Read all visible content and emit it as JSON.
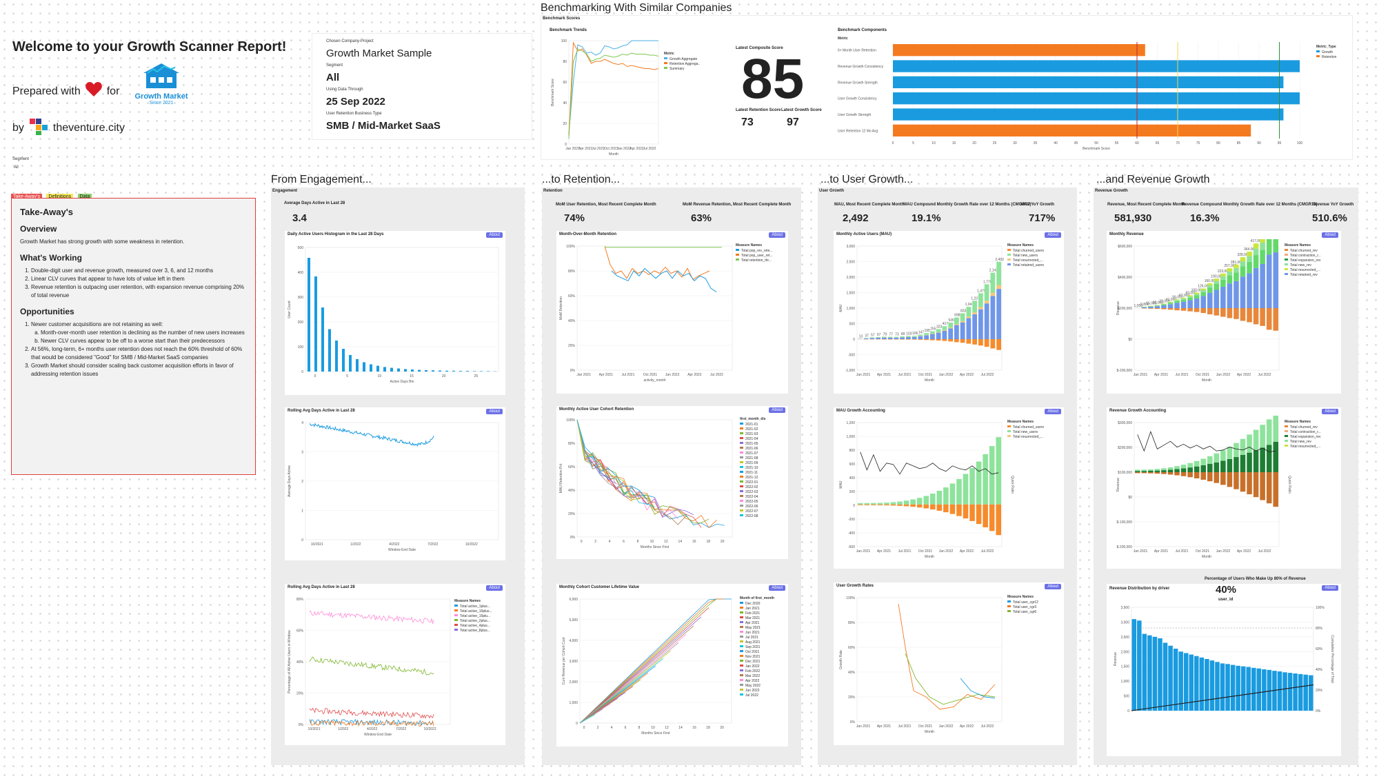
{
  "header": {
    "welcome": "Welcome to your Growth Scanner Report!",
    "prepared_with": "Prepared with",
    "for": "for",
    "by": "by",
    "brand": "theventure.city",
    "client_logo_name": "Growth Market",
    "client_logo_since": "Since 2021"
  },
  "info": {
    "company_label": "Chosen Company-Project",
    "company": "Growth Market Sample",
    "segment_label": "Segment",
    "segment": "All",
    "date_label": "Using Data Through",
    "date": "25 Sep 2022",
    "type_label": "User Retention Business Type",
    "type": "SMB / Mid-Market SaaS"
  },
  "left_segment": {
    "label": "Segment",
    "value": "All"
  },
  "tabs": [
    "Take-Away's",
    "Definitions",
    "Data"
  ],
  "takeaways": {
    "title": "Take-Away's",
    "overview_h": "Overview",
    "overview": "Growth Market has strong growth with some weakness in retention.",
    "working_h": "What's Working",
    "working": [
      "Double-digit user and revenue growth, measured over 3, 6, and 12 months",
      "Linear CLV curves that appear to have lots of value left in them",
      "Revenue retention is outpacing user retention, with expansion revenue comprising 20% of total revenue"
    ],
    "opps_h": "Opportunities",
    "opp1": "Newer customer acquisitions are not retaining as well:",
    "opp1a": "Month-over-month user retention is declining as the number of new users increases",
    "opp1b": "Newer CLV curves appear to be off to a worse start than their predecessors",
    "opp2": "At 56%, long-term, 6+ months user retention does not reach the 60% threshold of 60% that would be considered \"Good\" for SMB / Mid-Market SaaS companies",
    "opp3": "Growth Market should consider scaling back customer acquisition efforts in favor of addressing retention issues"
  },
  "benchmark": {
    "section_title": "Benchmarking With Similar Companies",
    "scores_label": "Benchmark Scores",
    "trends_label": "Benchmark Trends",
    "trends_ylabel": "Benchmark Score",
    "trends_xlabel": "Month",
    "trends_legend_title": "Metric",
    "trends_legend": [
      "Growth Aggregate",
      "Retention Aggrega...",
      "Summary"
    ],
    "trends_xticks": [
      "Jan 2021",
      "Apr 2021",
      "Jul 2021",
      "Oct 2021",
      "Jan 2022",
      "Apr 2022",
      "Jul 2022"
    ],
    "trends_yticks": [
      "0",
      "20",
      "40",
      "60",
      "80",
      "100"
    ],
    "composite_label": "Latest Composite Score",
    "composite": "85",
    "retention_label": "Latest Retention Score",
    "retention": "73",
    "growth_label": "Latest Growth Score",
    "growth": "97",
    "components_label": "Benchmark Components",
    "components_metric": "Metric",
    "components_xlabel": "Benchmark Score",
    "components_legend_title": "Metric_Type",
    "components_legend": [
      "Growth",
      "Retention"
    ],
    "components": [
      {
        "name": "6+ Month User Retention",
        "value": 62,
        "type": "Retention"
      },
      {
        "name": "Revenue Growth Consistency",
        "value": 100,
        "type": "Growth"
      },
      {
        "name": "Revenue Growth Strength",
        "value": 96,
        "type": "Growth"
      },
      {
        "name": "User Growth Consistency",
        "value": 100,
        "type": "Growth"
      },
      {
        "name": "User Growth Strength",
        "value": 96,
        "type": "Growth"
      },
      {
        "name": "User Retention 12 Mo Avg",
        "value": 88,
        "type": "Retention"
      }
    ],
    "components_xticks": [
      "0",
      "5",
      "10",
      "15",
      "20",
      "25",
      "30",
      "35",
      "40",
      "45",
      "50",
      "55",
      "60",
      "65",
      "70",
      "75",
      "80",
      "85",
      "90",
      "95",
      "100"
    ],
    "colors": {
      "growth": "#1a9be0",
      "retention": "#f47a20"
    }
  },
  "engagement": {
    "section_title": "From Engagement...",
    "panel_label": "Engagement",
    "kpi_label": "Average Days Active in Last 28",
    "kpi": "3.4",
    "hist_title": "Daily Active Users Histogram in the Last 28 Days",
    "hist_ylabel": "User Count",
    "hist_xlabel": "Active Days Bin",
    "hist_values": [
      550,
      460,
      310,
      205,
      150,
      110,
      80,
      60,
      45,
      35,
      28,
      22,
      18,
      15,
      12,
      10,
      8,
      7,
      6,
      5,
      4,
      4,
      3,
      3,
      2,
      2,
      2,
      1
    ],
    "hist_yticks": [
      "0",
      "100",
      "200",
      "300",
      "400",
      "500"
    ],
    "hist_xticks": [
      "0",
      "5",
      "10",
      "15",
      "20",
      "25"
    ],
    "roll1_title": "Rolling Avg Days Active in Last 28",
    "roll1_ylabel": "Average Days Active",
    "roll1_xlabel": "Window End Date",
    "roll1_xticks": [
      "10/2021",
      "1/2022",
      "4/2022",
      "7/2022",
      "10/2022"
    ],
    "roll1_yticks": [
      "0",
      "1",
      "2",
      "3",
      "4"
    ],
    "roll2_title": "Rolling Avg Days Active in Last 28",
    "roll2_ylabel": "Percentage of All Active Users in Window",
    "roll2_xlabel": "Window End Date",
    "roll2_legend_title": "Measure Names",
    "roll2_legend": [
      "Total active_1plus...",
      "Total active_10plus...",
      "Total active_15plu...",
      "Total active_2plus...",
      "Total active_4plus...",
      "Total active_8plus..."
    ],
    "roll2_yticks": [
      "0%",
      "20%",
      "40%",
      "60%",
      "80%"
    ],
    "about": "About"
  },
  "retention": {
    "section_title": "...to Retention...",
    "panel_label": "Retention",
    "kpi1_label": "MoM User Retention, Most Recent Complete Month",
    "kpi1": "74%",
    "kpi2_label": "MoM Revenue Retention, Most Recent Complete Month",
    "kpi2": "63%",
    "mom_title": "Month-Over-Month Retention",
    "mom_ylabel": "MoM Retention",
    "mom_xlabel": "activity_month",
    "mom_legend_title": "Measure Names",
    "mom_legend": [
      "Total pop_rev_rete...",
      "Total pop_user_ret...",
      "Total retention_thr..."
    ],
    "mom_yticks": [
      "0%",
      "20%",
      "40%",
      "60%",
      "80%",
      "100%"
    ],
    "mom_xticks": [
      "Jan 2021",
      "Apr 2021",
      "Jul 2021",
      "Oct 2021",
      "Jan 2022",
      "Apr 2022",
      "Jul 2022"
    ],
    "cohort_title": "Monthly Active User Cohort Retention",
    "cohort_ylabel": "MAU Retention Pct",
    "cohort_xlabel": "Months Since First",
    "cohort_legend_title": "first_month_dis",
    "cohort_legend": [
      "2021-01",
      "2021-02",
      "2021-03",
      "2021-04",
      "2021-05",
      "2021-06",
      "2021-07",
      "2021-08",
      "2021-09",
      "2021-10",
      "2021-11",
      "2021-12",
      "2022-01",
      "2022-02",
      "2022-03",
      "2022-04",
      "2022-05",
      "2022-06",
      "2022-07",
      "2022-08"
    ],
    "cohort_yticks": [
      "0%",
      "20%",
      "40%",
      "60%",
      "80%",
      "100%"
    ],
    "cohort_xticks": [
      "0",
      "2",
      "4",
      "6",
      "8",
      "10",
      "12",
      "14",
      "16",
      "18",
      "20"
    ],
    "clv_title": "Monthly Cohort Customer Lifetime Value",
    "clv_ylabel": "Cum Revenue per Cohort Cust",
    "clv_xlabel": "Months Since First",
    "clv_legend_title": "Month of first_month",
    "clv_legend": [
      "Dec 2020",
      "Jan 2021",
      "Feb 2021",
      "Mar 2021",
      "Apr 2021",
      "May 2021",
      "Jun 2021",
      "Jul 2021",
      "Aug 2021",
      "Sep 2021",
      "Oct 2021",
      "Nov 2021",
      "Dec 2021",
      "Jan 2022",
      "Feb 2022",
      "Mar 2022",
      "Apr 2022",
      "May 2022",
      "Jun 2022",
      "Jul 2022"
    ],
    "clv_yticks": [
      "0",
      "1,000",
      "2,000",
      "3,000",
      "4,000",
      "5,000",
      "6,000"
    ],
    "clv_xticks": [
      "0",
      "2",
      "4",
      "6",
      "8",
      "10",
      "12",
      "14",
      "16",
      "18",
      "20"
    ],
    "about": "About"
  },
  "users": {
    "section_title": "...to User Growth...",
    "panel_label": "User Growth",
    "kpi1_label": "MAU, Most Recent Complete Month",
    "kpi1": "2,492",
    "kpi2_label": "MAU Compound Monthly Growth Rate over 12 Months (CMGR12)",
    "kpi2": "19.1%",
    "kpi3_label": "MAU YoY Growth",
    "kpi3": "717%",
    "mau_title": "Monthly Active Users (MAU)",
    "mau_ylabel": "MAU",
    "mau_xlabel": "Month",
    "mau_legend_title": "Measure Names",
    "mau_legend": [
      "Total churned_users",
      "Total new_users",
      "Total resurrected_...",
      "Total retained_users"
    ],
    "mau_labels": [
      "13",
      "37",
      "57",
      "67",
      "79",
      "77",
      "73",
      "89",
      "103",
      "106",
      "147",
      "195",
      "255",
      "323",
      "417",
      "535",
      "698",
      "833",
      "1,041",
      "1,237",
      "1,479",
      "1,770",
      "2,142",
      "2,492"
    ],
    "mau_yticks": [
      "-1,000",
      "-500",
      "0",
      "500",
      "1,000",
      "1,500",
      "2,000",
      "2,500",
      "3,000"
    ],
    "mau_xticks": [
      "Jan 2021",
      "Apr 2021",
      "Jul 2021",
      "Oct 2021",
      "Jan 2022",
      "Apr 2022",
      "Jul 2022"
    ],
    "acct_title": "MAU Growth Accounting",
    "acct_ylabel": "MAU",
    "acct_ylabel2": "Quick Ratio",
    "acct_xlabel": "Month",
    "acct_legend_title": "Measure Names",
    "acct_legend": [
      "Total churned_users",
      "Total new_users",
      "Total resurrected_..."
    ],
    "acct_yticks": [
      "-600",
      "-400",
      "-200",
      "0",
      "200",
      "400",
      "600",
      "800",
      "1,000",
      "1,200"
    ],
    "acct_xticks": [
      "Jan 2021",
      "Apr 2021",
      "Jul 2021",
      "Oct 2021",
      "Jan 2022",
      "Apr 2022",
      "Jul 2022"
    ],
    "rates_title": "User Growth Rates",
    "rates_ylabel": "Growth Rate",
    "rates_xlabel": "Month",
    "rates_legend_title": "Measure Names",
    "rates_legend": [
      "Total user_cgr12",
      "Total user_cgr3",
      "Total user_cgr6"
    ],
    "rates_yticks": [
      "0%",
      "20%",
      "40%",
      "60%",
      "80%",
      "100%"
    ],
    "rates_xticks": [
      "Jan 2021",
      "Apr 2021",
      "Jul 2021",
      "Oct 2021",
      "Jan 2022",
      "Apr 2022",
      "Jul 2022"
    ],
    "about": "About"
  },
  "revenue": {
    "section_title": "...and Revenue Growth",
    "panel_label": "Revenue Growth",
    "kpi1_label": "Revenue, Most Recent Complete Month",
    "kpi1": "581,930",
    "kpi2_label": "Revenue Compound Monthly Growth Rate over 12 Months (CMGR12)",
    "kpi2": "16.3%",
    "kpi3_label": "Revenue YoY Growth",
    "kpi3": "510.6%",
    "rev_title": "Monthly Revenue",
    "rev_ylabel": "Revenue",
    "rev_xlabel": "Month",
    "rev_legend_title": "Measure Names",
    "rev_legend": [
      "Total churned_rev",
      "Total contraction_r...",
      "Total expansion_rev",
      "Total new_rev",
      "Total resurrected_...",
      "Total retained_rev"
    ],
    "rev_labels": [
      "1,050",
      "9,800",
      "15,000",
      "20,000",
      "29,000",
      "41,000",
      "56,000",
      "67,000",
      "83,000",
      "100,000",
      "126,000",
      "160,000",
      "190,000",
      "223,000",
      "257,000",
      "281,000",
      "328,000",
      "364,000",
      "417,000",
      "459,000",
      "558,000",
      "581,930"
    ],
    "rev_yticks": [
      "$-200,000",
      "$0",
      "$200,000",
      "$400,000",
      "$600,000"
    ],
    "rev_xticks": [
      "Jan 2021",
      "Apr 2021",
      "Jul 2021",
      "Oct 2021",
      "Jan 2022",
      "Apr 2022",
      "Jul 2022"
    ],
    "acct_title": "Revenue Growth Accounting",
    "acct_ylabel": "Revenue",
    "acct_ylabel2": "Quick Ratio",
    "acct_xlabel": "Month",
    "acct_legend_title": "Measure Names",
    "acct_legend": [
      "Total churned_rev",
      "Total contraction_r...",
      "Total expansion_rev",
      "Total new_rev",
      "Total resurrected_..."
    ],
    "acct_yticks": [
      "$-200,000",
      "$-100,000",
      "$0",
      "$100,000",
      "$200,000",
      "$300,000"
    ],
    "acct_xticks": [
      "Jan 2021",
      "Apr 2021",
      "Jul 2021",
      "Oct 2021",
      "Jan 2022",
      "Apr 2022",
      "Jul 2022"
    ],
    "dist_title": "Revenue Distribution by driver",
    "dist_kpi_label": "Percentage of Users Who Make Up 80% of Revenue",
    "dist_kpi": "40%",
    "dist_xlabel": "user_id",
    "dist_ylabel": "Revenue",
    "dist_ylabel2": "Cumulative Percentage of Total",
    "dist_values": [
      3100,
      3050,
      2600,
      2550,
      2500,
      2450,
      2300,
      2200,
      2100,
      2000,
      1950,
      1900,
      1850,
      1800,
      1750,
      1700,
      1650,
      1600,
      1580,
      1550,
      1520,
      1500,
      1480,
      1450,
      1430,
      1400,
      1380,
      1350,
      1330,
      1300,
      1280,
      1260,
      1240,
      1220,
      1200
    ],
    "dist_yticks": [
      "0",
      "500",
      "1,000",
      "1,500",
      "2,000",
      "2,500",
      "3,000",
      "3,500"
    ],
    "dist_y2ticks": [
      "0%",
      "20%",
      "40%",
      "60%",
      "80%",
      "100%"
    ],
    "about": "About"
  }
}
